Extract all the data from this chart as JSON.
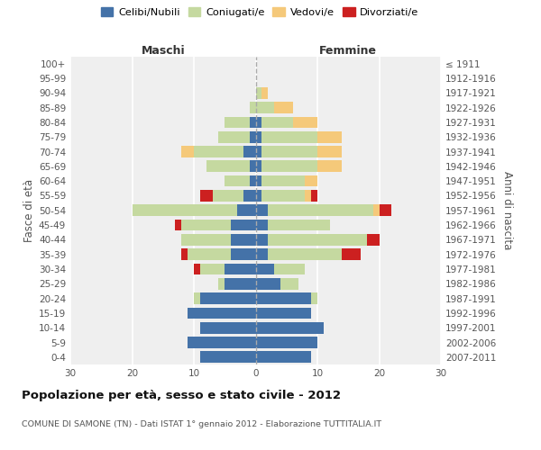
{
  "age_groups": [
    "100+",
    "95-99",
    "90-94",
    "85-89",
    "80-84",
    "75-79",
    "70-74",
    "65-69",
    "60-64",
    "55-59",
    "50-54",
    "45-49",
    "40-44",
    "35-39",
    "30-34",
    "25-29",
    "20-24",
    "15-19",
    "10-14",
    "5-9",
    "0-4"
  ],
  "birth_years": [
    "≤ 1911",
    "1912-1916",
    "1917-1921",
    "1922-1926",
    "1927-1931",
    "1932-1936",
    "1937-1941",
    "1942-1946",
    "1947-1951",
    "1952-1956",
    "1957-1961",
    "1962-1966",
    "1967-1971",
    "1972-1976",
    "1977-1981",
    "1982-1986",
    "1987-1991",
    "1992-1996",
    "1997-2001",
    "2002-2006",
    "2007-2011"
  ],
  "colors": {
    "celibe": "#4472a8",
    "coniugato": "#c5d9a0",
    "vedovo": "#f5c97a",
    "divorziato": "#cc2020"
  },
  "maschi": {
    "celibe": [
      0,
      0,
      0,
      0,
      1,
      1,
      2,
      1,
      1,
      2,
      3,
      4,
      4,
      4,
      5,
      5,
      9,
      11,
      9,
      11,
      9
    ],
    "coniugato": [
      0,
      0,
      0,
      1,
      4,
      5,
      8,
      7,
      4,
      5,
      17,
      8,
      8,
      7,
      4,
      1,
      1,
      0,
      0,
      0,
      0
    ],
    "vedovo": [
      0,
      0,
      0,
      0,
      0,
      0,
      2,
      0,
      0,
      0,
      0,
      0,
      0,
      0,
      0,
      0,
      0,
      0,
      0,
      0,
      0
    ],
    "divorziato": [
      0,
      0,
      0,
      0,
      0,
      0,
      0,
      0,
      0,
      2,
      0,
      1,
      0,
      1,
      1,
      0,
      0,
      0,
      0,
      0,
      0
    ]
  },
  "femmine": {
    "celibe": [
      0,
      0,
      0,
      0,
      1,
      1,
      1,
      1,
      1,
      1,
      2,
      2,
      2,
      2,
      3,
      4,
      9,
      9,
      11,
      10,
      9
    ],
    "coniugato": [
      0,
      0,
      1,
      3,
      5,
      9,
      9,
      9,
      7,
      7,
      17,
      10,
      16,
      12,
      5,
      3,
      1,
      0,
      0,
      0,
      0
    ],
    "vedovo": [
      0,
      0,
      1,
      3,
      4,
      4,
      4,
      4,
      2,
      1,
      1,
      0,
      0,
      0,
      0,
      0,
      0,
      0,
      0,
      0,
      0
    ],
    "divorziato": [
      0,
      0,
      0,
      0,
      0,
      0,
      0,
      0,
      0,
      1,
      2,
      0,
      2,
      3,
      0,
      0,
      0,
      0,
      0,
      0,
      0
    ]
  },
  "xlim": 30,
  "title": "Popolazione per età, sesso e stato civile - 2012",
  "subtitle": "COMUNE DI SAMONE (TN) - Dati ISTAT 1° gennaio 2012 - Elaborazione TUTTITALIA.IT",
  "ylabel_left": "Fasce di età",
  "ylabel_right": "Anni di nascita",
  "xlabel_left": "Maschi",
  "xlabel_right": "Femmine",
  "legend_labels": [
    "Celibi/Nubili",
    "Coniugati/e",
    "Vedovi/e",
    "Divorziati/e"
  ],
  "background_color": "#efefef"
}
